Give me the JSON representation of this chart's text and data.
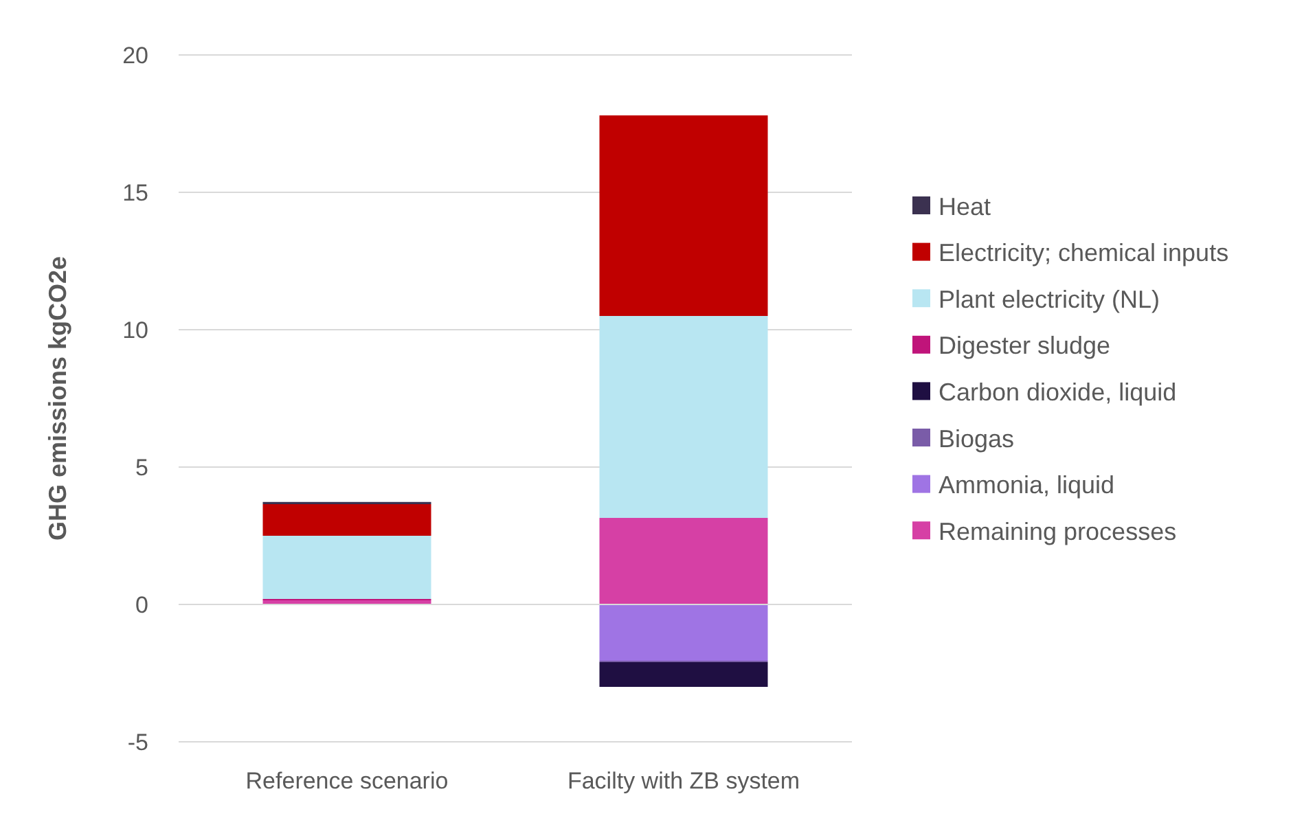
{
  "chart_data": {
    "type": "bar",
    "stacked": true,
    "ylabel": "GHG emissions kgCO2e",
    "categories": [
      "Reference scenario",
      "Facilty with ZB system"
    ],
    "ylim": [
      -5,
      20
    ],
    "yticks": [
      -5,
      0,
      5,
      10,
      15,
      20
    ],
    "grid": "y",
    "legend": "right",
    "series": [
      {
        "name": "Remaining processes",
        "color": "#d640a5",
        "values": [
          0.15,
          3.15
        ]
      },
      {
        "name": "Ammonia, liquid",
        "color": "#9f74e4",
        "values": [
          null,
          -2.05
        ]
      },
      {
        "name": "Biogas",
        "color": "#7a5ca8",
        "values": [
          null,
          -0.05
        ]
      },
      {
        "name": "Carbon dioxide, liquid",
        "color": "#1f0f42",
        "values": [
          null,
          -0.9
        ]
      },
      {
        "name": "Digester sludge",
        "color": "#c0147a",
        "values": [
          0.05,
          null
        ]
      },
      {
        "name": "Plant electricity (NL)",
        "color": "#b8e6f2",
        "values": [
          2.3,
          7.35
        ]
      },
      {
        "name": "Electricity; chemical inputs",
        "color": "#c00000",
        "values": [
          1.15,
          7.3
        ]
      },
      {
        "name": "Heat",
        "color": "#3b3150",
        "values": [
          0.08,
          null
        ]
      }
    ]
  }
}
